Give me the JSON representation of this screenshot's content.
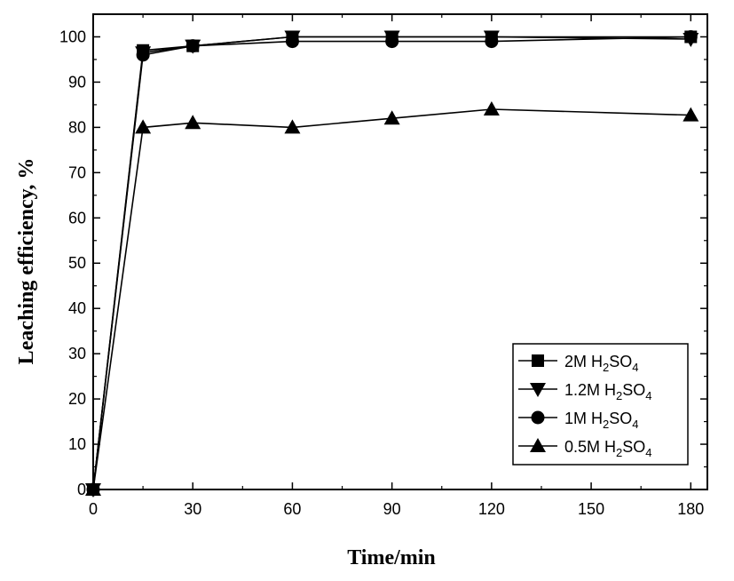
{
  "chart_data": {
    "type": "line",
    "xlabel": "Time/min",
    "ylabel": "Leaching efficiency, %",
    "xlim": [
      0,
      185
    ],
    "ylim": [
      0,
      105
    ],
    "xticks": [
      0,
      30,
      60,
      90,
      120,
      150,
      180
    ],
    "yticks": [
      0,
      10,
      20,
      30,
      40,
      50,
      60,
      70,
      80,
      90,
      100
    ],
    "grid": false,
    "legend_position": "bottom-right",
    "series": [
      {
        "name": "2M H2SO4",
        "legend_parts": [
          "2M H",
          "2",
          "SO",
          "4"
        ],
        "marker": "square",
        "x": [
          0,
          15,
          30,
          60,
          90,
          120,
          180
        ],
        "y": [
          0,
          97,
          98,
          100,
          100,
          100,
          100
        ]
      },
      {
        "name": "1.2M H2SO4",
        "legend_parts": [
          "1.2M H",
          "2",
          "SO",
          "4"
        ],
        "marker": "triangle-down",
        "x": [
          0,
          15,
          30,
          60,
          90,
          120,
          180
        ],
        "y": [
          0,
          96.5,
          98,
          100,
          100,
          100,
          99.5
        ]
      },
      {
        "name": "1M H2SO4",
        "legend_parts": [
          "1M H",
          "2",
          "SO",
          "4"
        ],
        "marker": "circle",
        "x": [
          0,
          15,
          30,
          60,
          90,
          120,
          180
        ],
        "y": [
          0,
          96,
          98,
          99,
          99,
          99,
          100
        ]
      },
      {
        "name": "0.5M H2SO4",
        "legend_parts": [
          "0.5M H",
          "2",
          "SO",
          "4"
        ],
        "marker": "triangle-up",
        "x": [
          0,
          15,
          30,
          60,
          90,
          120,
          180
        ],
        "y": [
          0,
          80,
          81,
          80,
          82,
          84,
          82.7
        ]
      }
    ],
    "colors": {
      "line": "#000000",
      "marker": "#000000",
      "background": "#ffffff"
    }
  }
}
